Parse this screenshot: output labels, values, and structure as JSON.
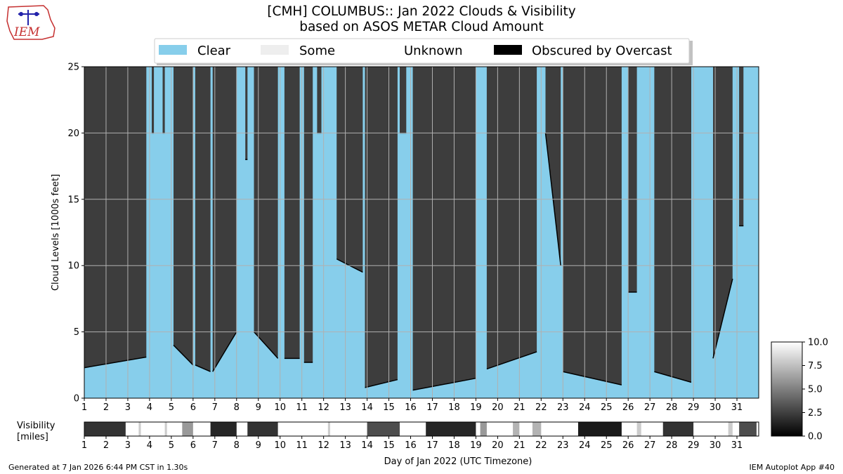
{
  "chart_data": {
    "type": "heatmap",
    "title_line1": "[CMH] COLUMBUS:: Jan 2022 Clouds & Visibility",
    "title_line2": "based on ASOS METAR Cloud Amount",
    "logo_text": "IEM",
    "legend": [
      {
        "name": "Clear",
        "color": "#87CEEB"
      },
      {
        "name": "Some",
        "color": "#EEEEEE"
      },
      {
        "name": "Unknown",
        "color": "#FFFFFF"
      },
      {
        "name": "Obscured by Overcast",
        "color": "#000000"
      }
    ],
    "ylabel": "Cloud Levels [1000s feet]",
    "yticks": [
      "0",
      "5",
      "10",
      "15",
      "20",
      "25"
    ],
    "ylim": [
      0,
      25
    ],
    "xlabel": "Day of Jan 2022 (UTC Timezone)",
    "xticks": [
      "1",
      "2",
      "3",
      "4",
      "5",
      "6",
      "7",
      "8",
      "9",
      "10",
      "11",
      "12",
      "13",
      "14",
      "15",
      "16",
      "17",
      "18",
      "19",
      "20",
      "21",
      "22",
      "23",
      "24",
      "25",
      "26",
      "27",
      "28",
      "29",
      "30",
      "31"
    ],
    "xlim": [
      1,
      32
    ],
    "grid": true,
    "overcast_color": "#3d3d3d",
    "clear_color": "#87CEEB",
    "cloud_periods": [
      {
        "start": 1.0,
        "end": 3.85,
        "base_start": 2.3,
        "base_end": 3.1
      },
      {
        "start": 4.1,
        "end": 4.2,
        "base_start": 20,
        "base_end": 20
      },
      {
        "start": 4.6,
        "end": 4.7,
        "base_start": 20,
        "base_end": 20
      },
      {
        "start": 5.1,
        "end": 6.0,
        "base_start": 4.0,
        "base_end": 2.5
      },
      {
        "start": 6.1,
        "end": 6.8,
        "base_start": 2.5,
        "base_end": 2.0
      },
      {
        "start": 6.9,
        "end": 8.0,
        "base_start": 2.0,
        "base_end": 5.0
      },
      {
        "start": 8.4,
        "end": 8.5,
        "base_start": 18,
        "base_end": 18
      },
      {
        "start": 8.8,
        "end": 9.9,
        "base_start": 5.0,
        "base_end": 3.0
      },
      {
        "start": 10.2,
        "end": 10.9,
        "base_start": 3.0,
        "base_end": 3.0
      },
      {
        "start": 11.1,
        "end": 11.5,
        "base_start": 2.7,
        "base_end": 2.7
      },
      {
        "start": 11.7,
        "end": 11.9,
        "base_start": 20,
        "base_end": 20
      },
      {
        "start": 12.6,
        "end": 13.8,
        "base_start": 10.5,
        "base_end": 9.5
      },
      {
        "start": 13.9,
        "end": 15.4,
        "base_start": 0.8,
        "base_end": 1.4
      },
      {
        "start": 15.5,
        "end": 15.8,
        "base_start": 20,
        "base_end": 20
      },
      {
        "start": 16.1,
        "end": 19.0,
        "base_start": 0.6,
        "base_end": 1.5
      },
      {
        "start": 19.5,
        "end": 21.8,
        "base_start": 2.2,
        "base_end": 3.5
      },
      {
        "start": 22.2,
        "end": 22.9,
        "base_start": 20,
        "base_end": 10
      },
      {
        "start": 23.0,
        "end": 25.7,
        "base_start": 2.0,
        "base_end": 1.0
      },
      {
        "start": 26.0,
        "end": 26.4,
        "base_start": 8.0,
        "base_end": 8.0
      },
      {
        "start": 27.2,
        "end": 28.9,
        "base_start": 2.0,
        "base_end": 1.2
      },
      {
        "start": 29.9,
        "end": 30.8,
        "base_start": 3.0,
        "base_end": 9.0
      },
      {
        "start": 31.1,
        "end": 31.3,
        "base_start": 13,
        "base_end": 13
      }
    ],
    "visibility": {
      "label_line1": "Visibility",
      "label_line2": "[miles]",
      "colorbar_ticks": [
        "0.0",
        "2.5",
        "5.0",
        "7.5",
        "10.0"
      ],
      "range": [
        0,
        10
      ],
      "low_periods": [
        {
          "start": 1.0,
          "end": 2.9,
          "value": 2.0
        },
        {
          "start": 3.5,
          "end": 3.6,
          "value": 8.0
        },
        {
          "start": 4.7,
          "end": 4.8,
          "value": 8.0
        },
        {
          "start": 5.5,
          "end": 6.0,
          "value": 6.0
        },
        {
          "start": 6.8,
          "end": 8.0,
          "value": 1.5
        },
        {
          "start": 8.5,
          "end": 9.9,
          "value": 2.0
        },
        {
          "start": 12.2,
          "end": 12.3,
          "value": 8.0
        },
        {
          "start": 14.0,
          "end": 15.5,
          "value": 3.0
        },
        {
          "start": 16.7,
          "end": 19.0,
          "value": 1.5
        },
        {
          "start": 19.2,
          "end": 19.5,
          "value": 6.0
        },
        {
          "start": 20.7,
          "end": 21.0,
          "value": 7.0
        },
        {
          "start": 21.6,
          "end": 22.0,
          "value": 7.0
        },
        {
          "start": 23.7,
          "end": 25.7,
          "value": 1.0
        },
        {
          "start": 26.4,
          "end": 26.6,
          "value": 8.0
        },
        {
          "start": 27.6,
          "end": 29.0,
          "value": 2.0
        },
        {
          "start": 30.6,
          "end": 30.8,
          "value": 8.0
        },
        {
          "start": 31.1,
          "end": 31.9,
          "value": 3.0
        }
      ]
    }
  },
  "footer": {
    "left": "Generated at 7 Jan 2026 6:44 PM CST in 1.30s",
    "right": "IEM Autoplot App #40"
  }
}
